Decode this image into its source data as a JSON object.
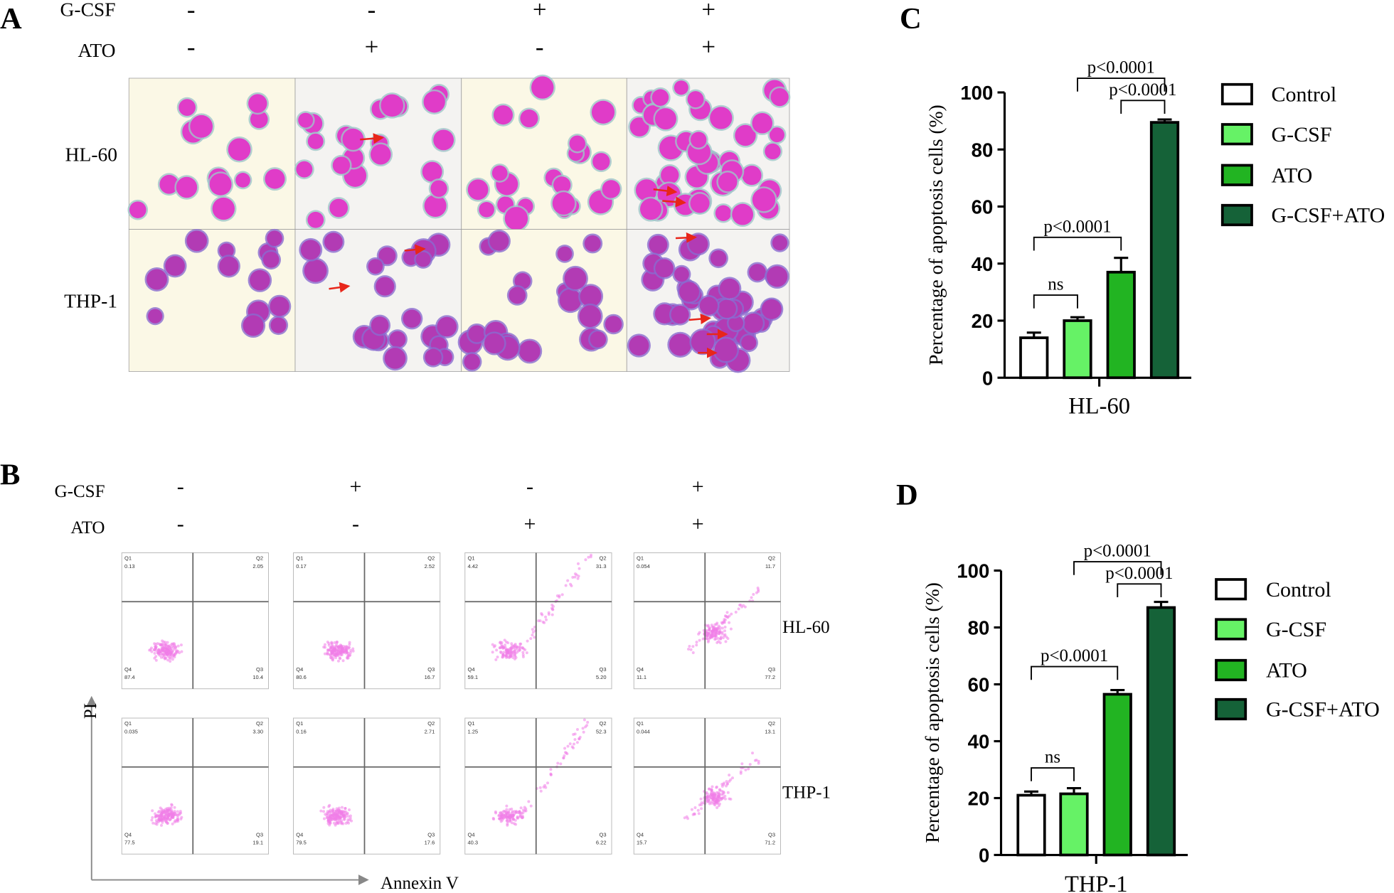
{
  "panel_a": {
    "label": "A",
    "factors": [
      "G-CSF",
      "ATO"
    ],
    "gcsf": [
      "-",
      "-",
      "+",
      "+"
    ],
    "ato": [
      "-",
      "+",
      "-",
      "+"
    ],
    "cell_lines": [
      "HL-60",
      "THP-1"
    ]
  },
  "panel_b": {
    "label": "B",
    "factors": [
      "G-CSF",
      "ATO"
    ],
    "gcsf": [
      "-",
      "+",
      "-",
      "+"
    ],
    "ato": [
      "-",
      "-",
      "+",
      "+"
    ],
    "cell_lines": [
      "HL-60",
      "THP-1"
    ],
    "y_axis": "PI",
    "x_axis": "Annexin V",
    "quadrants": [
      "Q1",
      "Q2",
      "Q3",
      "Q4"
    ],
    "plots": [
      [
        {
          "Q1": "0.13",
          "Q2": "2.05",
          "Q3": "10.4",
          "Q4": "87.4"
        },
        {
          "Q1": "0.17",
          "Q2": "2.52",
          "Q3": "16.7",
          "Q4": "80.6"
        },
        {
          "Q1": "4.42",
          "Q2": "31.3",
          "Q3": "5.20",
          "Q4": "59.1"
        },
        {
          "Q1": "0.054",
          "Q2": "11.7",
          "Q3": "77.2",
          "Q4": "11.1"
        }
      ],
      [
        {
          "Q1": "0.035",
          "Q2": "3.30",
          "Q3": "19.1",
          "Q4": "77.5"
        },
        {
          "Q1": "0.16",
          "Q2": "2.71",
          "Q3": "17.6",
          "Q4": "79.5"
        },
        {
          "Q1": "1.25",
          "Q2": "52.3",
          "Q3": "6.22",
          "Q4": "40.3"
        },
        {
          "Q1": "0.044",
          "Q2": "13.1",
          "Q3": "71.2",
          "Q4": "15.7"
        }
      ]
    ]
  },
  "chart_data": [
    {
      "type": "bar",
      "panel": "C",
      "y_label": "Percentage of apoptosis cells (%)",
      "categories": [
        "HL-60"
      ],
      "series": [
        {
          "name": "Control",
          "color": "#ffffff",
          "values": [
            14
          ],
          "errors": [
            1.8
          ]
        },
        {
          "name": "G-CSF",
          "color": "#66f266",
          "values": [
            20
          ],
          "errors": [
            1.2
          ]
        },
        {
          "name": "ATO",
          "color": "#22b422",
          "values": [
            37
          ],
          "errors": [
            5
          ]
        },
        {
          "name": "G-CSF+ATO",
          "color": "#156238",
          "values": [
            89.5
          ],
          "errors": [
            1
          ]
        }
      ],
      "annotations": [
        "p<0.0001",
        "p<0.0001",
        "p<0.0001",
        "ns"
      ],
      "ylim": [
        0,
        100
      ],
      "yticks": [
        0,
        20,
        40,
        60,
        80,
        100
      ]
    },
    {
      "type": "bar",
      "panel": "D",
      "y_label": "Percentage of apoptosis cells (%)",
      "categories": [
        "THP-1"
      ],
      "series": [
        {
          "name": "Control",
          "color": "#ffffff",
          "values": [
            21
          ],
          "errors": [
            1.3
          ]
        },
        {
          "name": "G-CSF",
          "color": "#66f266",
          "values": [
            21.5
          ],
          "errors": [
            2
          ]
        },
        {
          "name": "ATO",
          "color": "#22b422",
          "values": [
            56.5
          ],
          "errors": [
            1.5
          ]
        },
        {
          "name": "G-CSF+ATO",
          "color": "#156238",
          "values": [
            87
          ],
          "errors": [
            2
          ]
        }
      ],
      "annotations": [
        "p<0.0001",
        "p<0.0001",
        "p<0.0001",
        "ns"
      ],
      "ylim": [
        0,
        100
      ],
      "yticks": [
        0,
        20,
        40,
        60,
        80,
        100
      ]
    }
  ]
}
